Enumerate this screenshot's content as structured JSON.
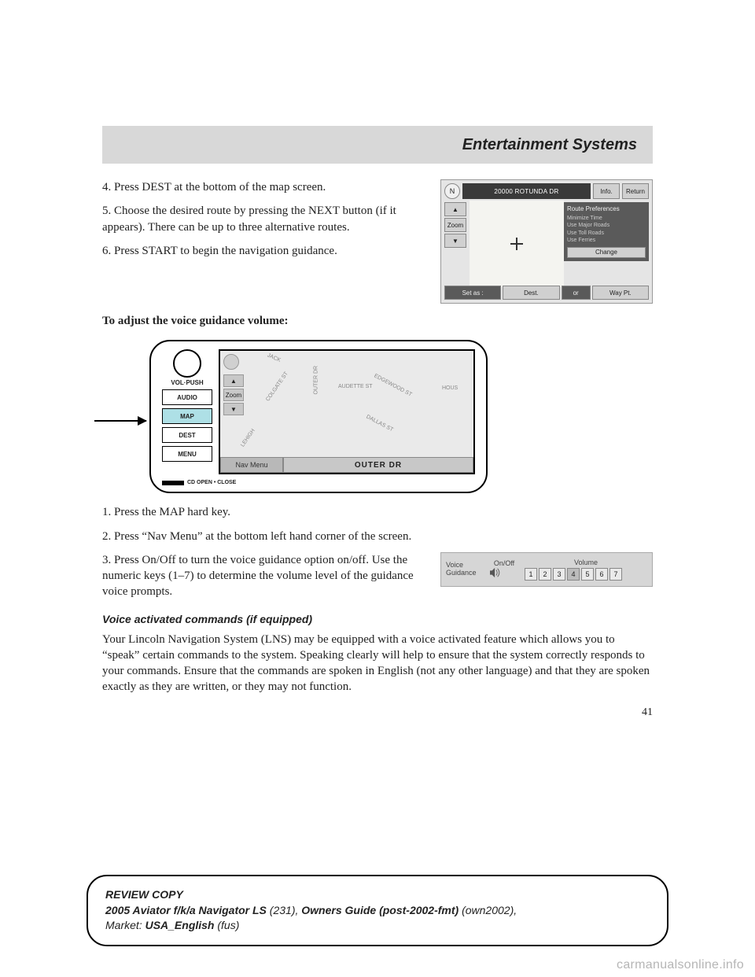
{
  "header": {
    "title": "Entertainment Systems"
  },
  "steps_top": {
    "s4": "4. Press DEST at the bottom of the map screen.",
    "s5": "5. Choose the desired route by pressing the NEXT button (if it appears). There can be up to three alternative routes.",
    "s6": "6. Press START to begin the navigation guidance."
  },
  "adjust_heading": "To adjust the voice guidance volume:",
  "nav1": {
    "n": "N",
    "address": "20000 ROTUNDA DR",
    "info": "Info.",
    "return": "Return",
    "zoom": "Zoom",
    "pref_title": "Route Preferences",
    "pref1": "Minimize Time",
    "pref2": "Use Major Roads",
    "pref3": "Use Toll Roads",
    "pref4": "Use Ferries",
    "change": "Change",
    "setas": "Set as :",
    "dest": "Dest.",
    "or": "or",
    "waypt": "Way Pt."
  },
  "console": {
    "vol": "VOL·PUSH",
    "audio": "AUDIO",
    "map": "MAP",
    "dest": "DEST",
    "menu": "MENU",
    "cd": "CD OPEN • CLOSE",
    "zoom": "Zoom",
    "navmenu": "Nav Menu",
    "outer": "OUTER DR",
    "roads": {
      "r1": "COLGATE ST",
      "r2": "LEHIGH",
      "r3": "OUTER DR",
      "r4": "AUDETTE ST",
      "r5": "EDGEWOOD ST",
      "r6": "DALLAS ST",
      "r7": "HOUS",
      "r8": "JACK"
    }
  },
  "steps_mid": {
    "s1": "1. Press the MAP hard key.",
    "s2": "2. Press “Nav Menu” at the bottom left hand corner of the screen.",
    "s3": "3. Press On/Off to turn the voice guidance option on/off. Use the numeric keys (1–7) to determine the volume level of the guidance voice prompts."
  },
  "voice_panel": {
    "label": "Voice Guidance",
    "onoff": "On/Off",
    "volume": "Volume",
    "keys": [
      "1",
      "2",
      "3",
      "4",
      "5",
      "6",
      "7"
    ],
    "selected_index": 3
  },
  "voice_cmd_heading": "Voice activated commands (if equipped)",
  "voice_cmd_body": "Your Lincoln Navigation System (LNS) may be equipped with a voice activated feature which allows you to “speak” certain commands to the system. Speaking clearly will help to ensure that the system correctly responds to your commands. Ensure that the commands are spoken in English (not any other language) and that they are spoken exactly as they are written, or they may not function.",
  "page_number": "41",
  "footer": {
    "line1a": "REVIEW COPY",
    "line2a": "2005 Aviator f/k/a Navigator LS",
    "line2b": " (231)",
    "line2c": ", ",
    "line2d": "Owners Guide (post-2002-fmt)",
    "line2e": " (own2002),",
    "line3a": "Market: ",
    "line3b": "USA_English",
    "line3c": " (fus)"
  },
  "watermark": "carmanualsonline.info"
}
